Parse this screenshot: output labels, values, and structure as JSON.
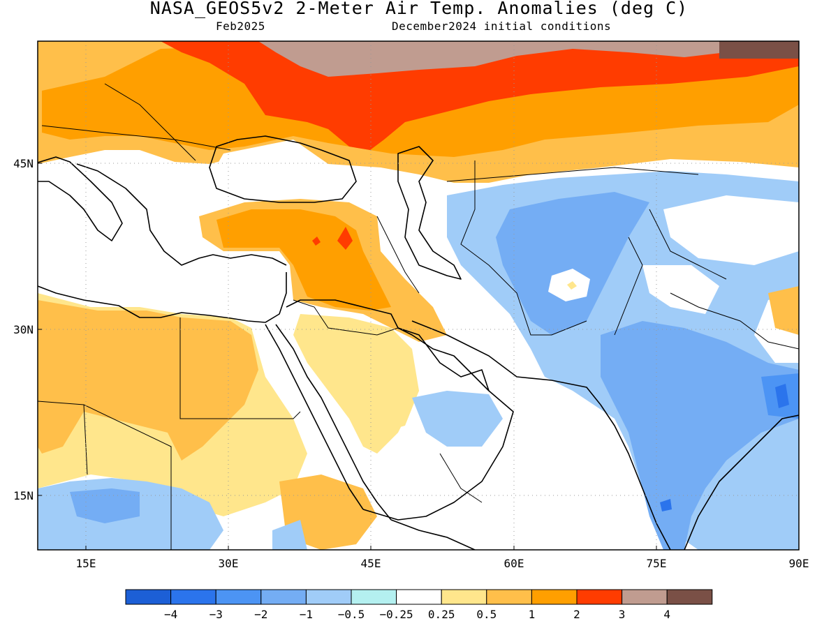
{
  "title": "NASA_GEOS5v2 2-Meter Air Temp. Anomalies (deg C)",
  "subtitle_left": "Feb2025",
  "subtitle_right": "December2024 initial conditions",
  "map": {
    "region": "Middle East / South Asia",
    "lon_range": [
      10,
      90
    ],
    "lat_range": [
      10,
      55
    ],
    "x_ticks": [
      "15E",
      "30E",
      "45E",
      "60E",
      "75E",
      "90E"
    ],
    "y_ticks": [
      "45N",
      "30N",
      "15N"
    ],
    "gridlines": "dotted",
    "coastlines": true,
    "country_borders": true
  },
  "colorbar": {
    "colors": [
      "#1c5fd6",
      "#2b74ec",
      "#4c94f4",
      "#74adf4",
      "#a0ccf8",
      "#b4f0f0",
      "#ffffff",
      "#ffe68c",
      "#ffbf4a",
      "#ff9f00",
      "#ff3c00",
      "#c09c90",
      "#7a5046"
    ],
    "labels": [
      "−4",
      "−3",
      "−2",
      "−1",
      "−0.5",
      "−0.25",
      "0.25",
      "0.5",
      "1",
      "2",
      "3",
      "4"
    ]
  },
  "anomaly_regions": [
    {
      "name": "northern-russia",
      "level": "3 to 4",
      "color": "#c09c90"
    },
    {
      "name": "russia-kazakhstan-band",
      "level": "2 to 3",
      "color": "#ff3c00"
    },
    {
      "name": "eastern-europe",
      "level": "1 to 2",
      "color": "#ff9f00"
    },
    {
      "name": "turkey-iraq",
      "level": "1 to 2",
      "color": "#ff9f00"
    },
    {
      "name": "north-africa",
      "level": "0.5 to 1",
      "color": "#ffbf4a"
    },
    {
      "name": "arabia-sudan",
      "level": "0.25 to 0.5",
      "color": "#ffe68c"
    },
    {
      "name": "central-asia",
      "level": "−1 to −0.5",
      "color": "#a0ccf8"
    },
    {
      "name": "afghanistan-pakistan",
      "level": "−2 to −1",
      "color": "#74adf4"
    },
    {
      "name": "india",
      "level": "−2 to −1",
      "color": "#74adf4"
    },
    {
      "name": "bangladesh",
      "level": "−3 to −2",
      "color": "#4c94f4"
    },
    {
      "name": "east-africa",
      "level": "−1 to −0.5",
      "color": "#a0ccf8"
    }
  ]
}
